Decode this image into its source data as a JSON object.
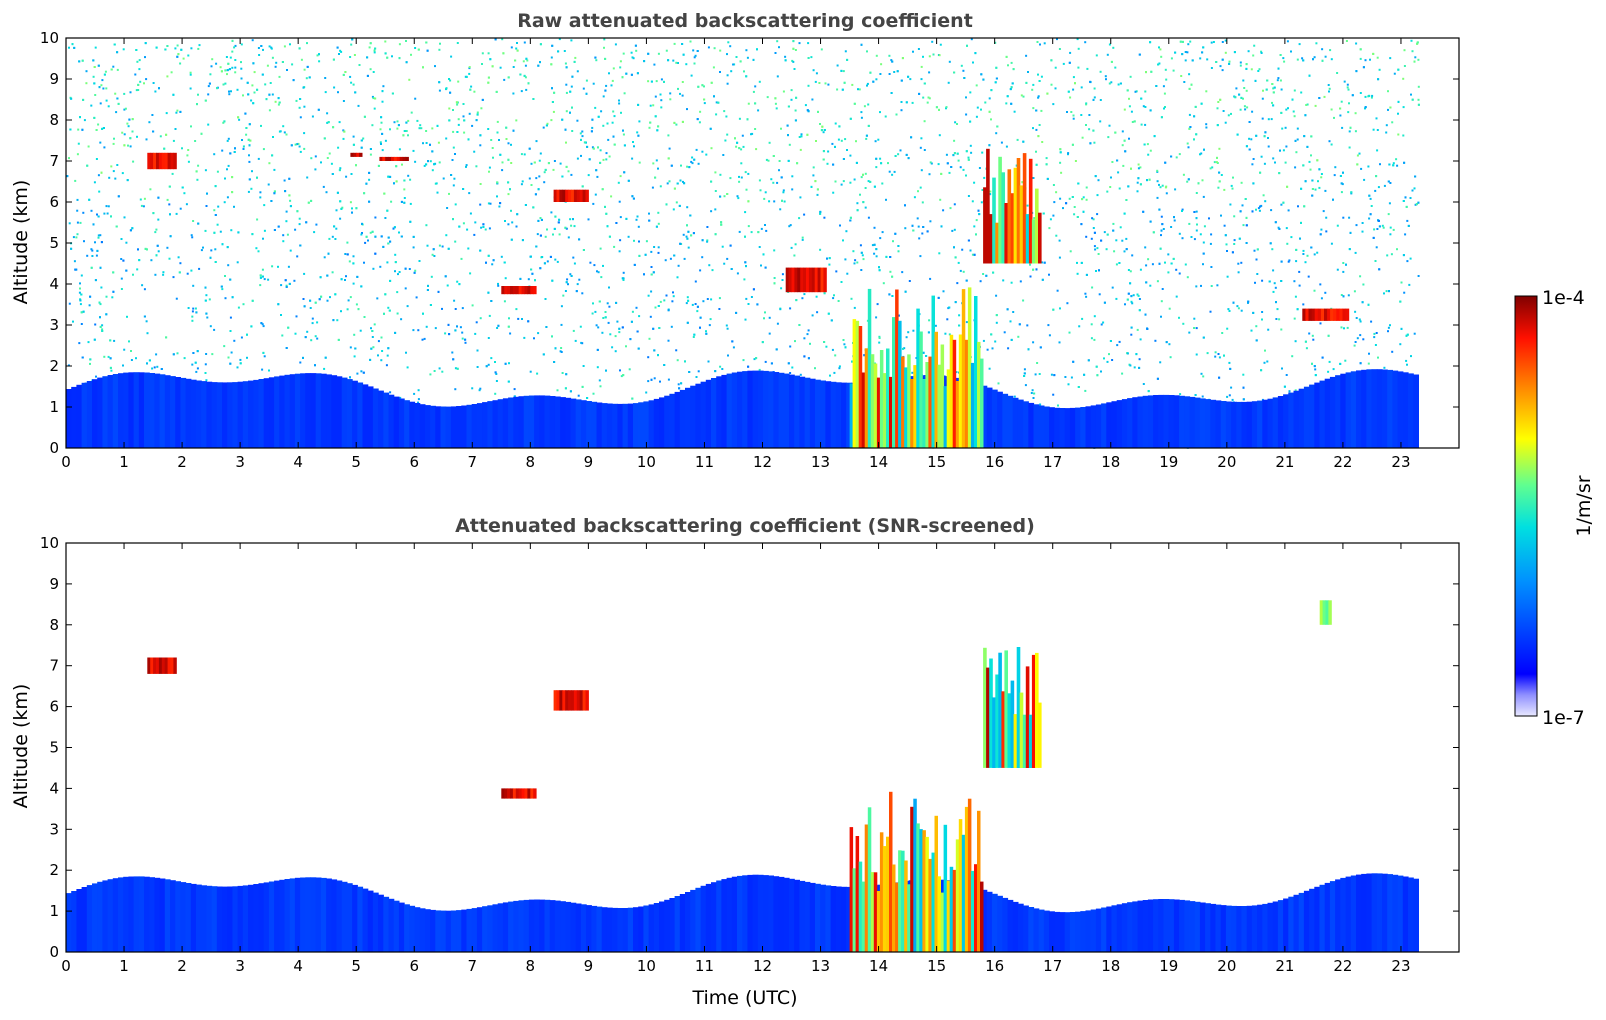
{
  "chart_data": [
    {
      "type": "heatmap",
      "title": "Raw attenuated backscattering coefficient",
      "xlabel": "",
      "ylabel": "Altitude (km)",
      "xlim": [
        0,
        24
      ],
      "ylim": [
        0,
        10
      ],
      "xticks": [
        "0",
        "1",
        "2",
        "3",
        "4",
        "5",
        "6",
        "7",
        "8",
        "9",
        "10",
        "11",
        "12",
        "13",
        "14",
        "15",
        "16",
        "17",
        "18",
        "19",
        "20",
        "21",
        "22",
        "23"
      ],
      "yticks": [
        "0",
        "1",
        "2",
        "3",
        "4",
        "5",
        "6",
        "7",
        "8",
        "9",
        "10"
      ],
      "data_end_time": 23.3,
      "screened": false,
      "layers": [
        {
          "kind": "boundary-layer",
          "time_range": [
            0,
            23.3
          ],
          "altitude_range": [
            0,
            2
          ],
          "level": "low"
        },
        {
          "kind": "precipitation/cloud",
          "time_range": [
            13.5,
            15.8
          ],
          "altitude_range": [
            0,
            4
          ],
          "level": "high"
        },
        {
          "kind": "cloud",
          "time_range": [
            15.8,
            16.8
          ],
          "altitude_range": [
            4.5,
            7.3
          ],
          "level": "high"
        },
        {
          "kind": "cloud",
          "time_range": [
            1.4,
            1.9
          ],
          "altitude_range": [
            6.8,
            7.2
          ],
          "level": "high"
        },
        {
          "kind": "cloud",
          "time_range": [
            4.9,
            5.1
          ],
          "altitude_range": [
            7.1,
            7.2
          ],
          "level": "high"
        },
        {
          "kind": "cloud",
          "time_range": [
            5.4,
            5.9
          ],
          "altitude_range": [
            7.0,
            7.1
          ],
          "level": "high"
        },
        {
          "kind": "cloud",
          "time_range": [
            8.4,
            9.0
          ],
          "altitude_range": [
            6.0,
            6.3
          ],
          "level": "high"
        },
        {
          "kind": "cloud",
          "time_range": [
            7.5,
            8.1
          ],
          "altitude_range": [
            3.75,
            3.95
          ],
          "level": "high"
        },
        {
          "kind": "cloud",
          "time_range": [
            12.4,
            13.1
          ],
          "altitude_range": [
            3.8,
            4.4
          ],
          "level": "high"
        },
        {
          "kind": "cloud",
          "time_range": [
            21.3,
            22.1
          ],
          "altitude_range": [
            3.1,
            3.4
          ],
          "level": "high"
        }
      ]
    },
    {
      "type": "heatmap",
      "title": "Attenuated backscattering coefficient (SNR-screened)",
      "xlabel": "Time (UTC)",
      "ylabel": "Altitude (km)",
      "xlim": [
        0,
        24
      ],
      "ylim": [
        0,
        10
      ],
      "xticks": [
        "0",
        "1",
        "2",
        "3",
        "4",
        "5",
        "6",
        "7",
        "8",
        "9",
        "10",
        "11",
        "12",
        "13",
        "14",
        "15",
        "16",
        "17",
        "18",
        "19",
        "20",
        "21",
        "22",
        "23"
      ],
      "yticks": [
        "0",
        "1",
        "2",
        "3",
        "4",
        "5",
        "6",
        "7",
        "8",
        "9",
        "10"
      ],
      "data_end_time": 23.3,
      "screened": true,
      "layers": [
        {
          "kind": "boundary-layer",
          "time_range": [
            0,
            23.3
          ],
          "altitude_range": [
            0,
            2
          ],
          "level": "low"
        },
        {
          "kind": "precipitation/cloud",
          "time_range": [
            13.5,
            15.8
          ],
          "altitude_range": [
            0,
            4
          ],
          "level": "high"
        },
        {
          "kind": "cloud",
          "time_range": [
            15.8,
            16.8
          ],
          "altitude_range": [
            4.5,
            7.5
          ],
          "level": "high"
        },
        {
          "kind": "cloud",
          "time_range": [
            1.4,
            1.9
          ],
          "altitude_range": [
            6.8,
            7.2
          ],
          "level": "high"
        },
        {
          "kind": "cloud",
          "time_range": [
            8.4,
            9.0
          ],
          "altitude_range": [
            5.9,
            6.4
          ],
          "level": "high"
        },
        {
          "kind": "cloud",
          "time_range": [
            7.5,
            8.1
          ],
          "altitude_range": [
            3.75,
            4.0
          ],
          "level": "high"
        },
        {
          "kind": "cloud",
          "time_range": [
            21.6,
            21.8
          ],
          "altitude_range": [
            8.0,
            8.6
          ],
          "level": "medium"
        }
      ]
    }
  ],
  "colorbar": {
    "label": "1/m/sr",
    "max_label": "1e-4",
    "min_label": "1e-7",
    "colors": [
      "#0000ff",
      "#00b4ff",
      "#00ffc8",
      "#a0ff40",
      "#ffff00",
      "#ff9000",
      "#ff2000",
      "#800000"
    ]
  }
}
